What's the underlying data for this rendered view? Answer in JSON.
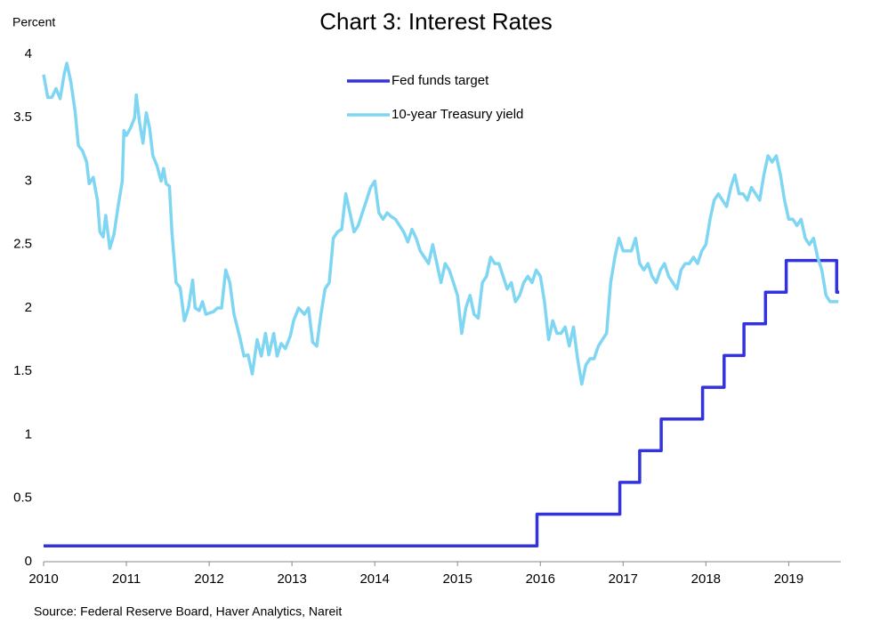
{
  "chart_data": {
    "type": "line",
    "title": "Chart 3: Interest Rates",
    "y_label": "Percent",
    "source": "Source: Federal Reserve Board, Haver Analytics, Nareit",
    "xlim": [
      2010,
      2019.63
    ],
    "xticks": [
      2010,
      2011,
      2012,
      2013,
      2014,
      2015,
      2016,
      2017,
      2018,
      2019
    ],
    "ylim": [
      0,
      4
    ],
    "yticks": [
      0,
      0.5,
      1,
      1.5,
      2,
      2.5,
      3,
      3.5,
      4
    ],
    "grid": false,
    "series": [
      {
        "name": "Fed funds target",
        "color": "#3333dd",
        "x": [
          2010,
          2015.96,
          2015.96,
          2016.96,
          2016.96,
          2017.2,
          2017.2,
          2017.46,
          2017.46,
          2017.96,
          2017.96,
          2018.22,
          2018.22,
          2018.46,
          2018.46,
          2018.72,
          2018.72,
          2018.97,
          2018.97,
          2019.58,
          2019.58,
          2019.61
        ],
        "values": [
          0.125,
          0.125,
          0.375,
          0.375,
          0.625,
          0.625,
          0.875,
          0.875,
          1.125,
          1.125,
          1.375,
          1.375,
          1.625,
          1.625,
          1.875,
          1.875,
          2.125,
          2.125,
          2.375,
          2.375,
          2.125,
          2.125
        ]
      },
      {
        "name": "10-year Treasury yield",
        "color": "#7fd6f2",
        "x": [
          2010.0,
          2010.05,
          2010.1,
          2010.15,
          2010.2,
          2010.25,
          2010.28,
          2010.33,
          2010.38,
          2010.42,
          2010.47,
          2010.52,
          2010.55,
          2010.6,
          2010.65,
          2010.68,
          2010.72,
          2010.75,
          2010.8,
          2010.85,
          2010.9,
          2010.95,
          2010.97,
          2011.0,
          2011.05,
          2011.1,
          2011.12,
          2011.16,
          2011.2,
          2011.24,
          2011.28,
          2011.32,
          2011.37,
          2011.42,
          2011.45,
          2011.48,
          2011.52,
          2011.55,
          2011.6,
          2011.65,
          2011.7,
          2011.75,
          2011.8,
          2011.83,
          2011.88,
          2011.92,
          2011.96,
          2012.0,
          2012.05,
          2012.1,
          2012.15,
          2012.2,
          2012.25,
          2012.3,
          2012.37,
          2012.42,
          2012.47,
          2012.52,
          2012.58,
          2012.63,
          2012.68,
          2012.72,
          2012.78,
          2012.82,
          2012.87,
          2012.92,
          2012.98,
          2013.02,
          2013.08,
          2013.15,
          2013.2,
          2013.25,
          2013.3,
          2013.35,
          2013.4,
          2013.45,
          2013.5,
          2013.55,
          2013.6,
          2013.65,
          2013.7,
          2013.75,
          2013.8,
          2013.85,
          2013.9,
          2013.95,
          2014.0,
          2014.05,
          2014.1,
          2014.15,
          2014.2,
          2014.25,
          2014.35,
          2014.4,
          2014.45,
          2014.5,
          2014.55,
          2014.6,
          2014.65,
          2014.7,
          2014.75,
          2014.8,
          2014.85,
          2014.9,
          2014.95,
          2015.0,
          2015.05,
          2015.1,
          2015.15,
          2015.2,
          2015.25,
          2015.3,
          2015.35,
          2015.4,
          2015.45,
          2015.5,
          2015.55,
          2015.6,
          2015.65,
          2015.7,
          2015.75,
          2015.8,
          2015.85,
          2015.9,
          2015.95,
          2016.0,
          2016.05,
          2016.1,
          2016.15,
          2016.2,
          2016.25,
          2016.3,
          2016.35,
          2016.4,
          2016.45,
          2016.5,
          2016.55,
          2016.6,
          2016.65,
          2016.7,
          2016.75,
          2016.8,
          2016.85,
          2016.9,
          2016.95,
          2017.0,
          2017.05,
          2017.1,
          2017.15,
          2017.2,
          2017.25,
          2017.3,
          2017.35,
          2017.4,
          2017.45,
          2017.5,
          2017.55,
          2017.6,
          2017.65,
          2017.7,
          2017.75,
          2017.8,
          2017.85,
          2017.9,
          2017.95,
          2018.0,
          2018.05,
          2018.1,
          2018.15,
          2018.2,
          2018.25,
          2018.3,
          2018.35,
          2018.4,
          2018.45,
          2018.5,
          2018.55,
          2018.6,
          2018.65,
          2018.7,
          2018.75,
          2018.8,
          2018.85,
          2018.9,
          2018.95,
          2019.0,
          2019.05,
          2019.1,
          2019.15,
          2019.2,
          2019.25,
          2019.3,
          2019.35,
          2019.4,
          2019.45,
          2019.5,
          2019.55,
          2019.6
        ],
        "values": [
          3.84,
          3.66,
          3.66,
          3.73,
          3.65,
          3.85,
          3.93,
          3.78,
          3.55,
          3.28,
          3.24,
          3.15,
          2.98,
          3.03,
          2.85,
          2.6,
          2.56,
          2.73,
          2.47,
          2.58,
          2.8,
          3.0,
          3.4,
          3.36,
          3.42,
          3.5,
          3.68,
          3.46,
          3.3,
          3.54,
          3.42,
          3.2,
          3.12,
          3.0,
          3.1,
          2.98,
          2.96,
          2.6,
          2.2,
          2.16,
          1.9,
          2.0,
          2.22,
          2.0,
          1.98,
          2.05,
          1.95,
          1.96,
          1.97,
          2.0,
          2.0,
          2.3,
          2.2,
          1.95,
          1.77,
          1.62,
          1.63,
          1.48,
          1.75,
          1.62,
          1.8,
          1.63,
          1.8,
          1.62,
          1.72,
          1.68,
          1.78,
          1.9,
          2.0,
          1.95,
          2.0,
          1.73,
          1.7,
          1.95,
          2.15,
          2.2,
          2.55,
          2.6,
          2.62,
          2.9,
          2.75,
          2.6,
          2.65,
          2.75,
          2.85,
          2.95,
          3.0,
          2.75,
          2.7,
          2.75,
          2.72,
          2.7,
          2.6,
          2.52,
          2.62,
          2.55,
          2.45,
          2.4,
          2.35,
          2.5,
          2.35,
          2.2,
          2.35,
          2.3,
          2.2,
          2.1,
          1.8,
          2.0,
          2.1,
          1.95,
          1.92,
          2.2,
          2.25,
          2.4,
          2.35,
          2.35,
          2.25,
          2.15,
          2.2,
          2.05,
          2.1,
          2.2,
          2.25,
          2.2,
          2.3,
          2.25,
          2.05,
          1.75,
          1.9,
          1.8,
          1.8,
          1.85,
          1.7,
          1.85,
          1.6,
          1.4,
          1.55,
          1.6,
          1.6,
          1.7,
          1.75,
          1.8,
          2.2,
          2.4,
          2.55,
          2.45,
          2.45,
          2.45,
          2.55,
          2.35,
          2.3,
          2.35,
          2.25,
          2.2,
          2.3,
          2.35,
          2.25,
          2.2,
          2.15,
          2.3,
          2.35,
          2.35,
          2.4,
          2.35,
          2.45,
          2.5,
          2.7,
          2.85,
          2.9,
          2.85,
          2.8,
          2.95,
          3.05,
          2.9,
          2.9,
          2.85,
          2.95,
          2.9,
          2.85,
          3.05,
          3.2,
          3.15,
          3.2,
          3.05,
          2.85,
          2.7,
          2.7,
          2.65,
          2.7,
          2.55,
          2.5,
          2.55,
          2.4,
          2.3,
          2.1,
          2.05,
          2.05,
          2.05
        ]
      }
    ]
  }
}
